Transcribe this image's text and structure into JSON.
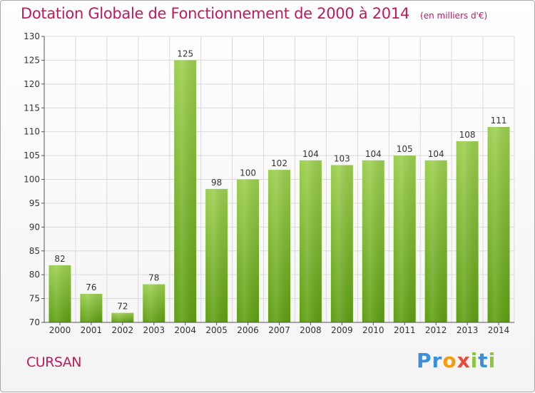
{
  "header": {
    "title": "Dotation Globale de Fonctionnement de 2000 à 2014",
    "unit": "(en milliers d'€)"
  },
  "footer": {
    "commune": "CURSAN",
    "brand": "Proxiti",
    "brand_letters": [
      {
        "ch": "P",
        "color": "#3b8fd9"
      },
      {
        "ch": "r",
        "color": "#3b8fd9"
      },
      {
        "ch": "o",
        "color": "#f39c12"
      },
      {
        "ch": "x",
        "color": "#e74c3c"
      },
      {
        "ch": "i",
        "color": "#8dc63f"
      },
      {
        "ch": "t",
        "color": "#3b8fd9"
      },
      {
        "ch": "i",
        "color": "#8dc63f"
      }
    ]
  },
  "colors": {
    "accent": "#c2185b",
    "bar_light": "#9ccf4f",
    "bar_dark": "#5e9e12",
    "grid": "#d9d9d9"
  },
  "chart_data": {
    "type": "bar",
    "title": "Dotation Globale de Fonctionnement de 2000 à 2014",
    "categories": [
      "2000",
      "2001",
      "2002",
      "2003",
      "2004",
      "2005",
      "2006",
      "2007",
      "2008",
      "2009",
      "2010",
      "2011",
      "2012",
      "2013",
      "2014"
    ],
    "values": [
      82,
      76,
      72,
      78,
      125,
      98,
      100,
      102,
      104,
      103,
      104,
      105,
      104,
      108,
      111
    ],
    "ylim": [
      70,
      130
    ],
    "yticks": [
      70,
      75,
      80,
      85,
      90,
      95,
      100,
      105,
      110,
      115,
      120,
      125,
      130
    ],
    "xlabel": "",
    "ylabel": "",
    "grid": true
  }
}
